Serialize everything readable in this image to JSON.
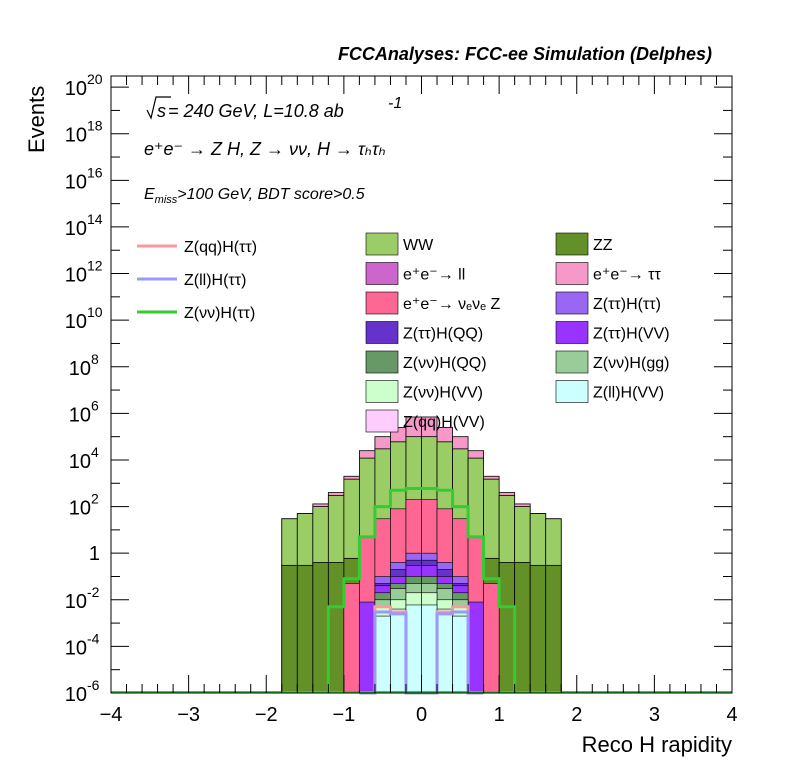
{
  "header": "FCCAnalyses: FCC-ee Simulation (Delphes)",
  "annotations": {
    "line1_sqrt": "s",
    "line1_rest": " = 240 GeV, L=10.8 ab",
    "line1_exp": "-1",
    "line2": "e⁺e⁻ → Z H, Z → νν, H → τₕτₕ",
    "line3_E": "E",
    "line3_sub": "miss",
    "line3_rest": ">100 GeV, BDT score>0.5"
  },
  "chart_data": {
    "type": "stacked histogram",
    "xlabel": "Reco H rapidity",
    "ylabel": "Events",
    "xlim": [
      -4,
      4
    ],
    "ylim": [
      1e-06,
      3e+20
    ],
    "log_y": true,
    "x_ticks": [
      "−4",
      "−3",
      "−2",
      "−1",
      "0",
      "1",
      "2",
      "3",
      "4"
    ],
    "y_ticks": [
      {
        "base": "10",
        "exp": "20"
      },
      {
        "base": "10",
        "exp": "18"
      },
      {
        "base": "10",
        "exp": "16"
      },
      {
        "base": "10",
        "exp": "14"
      },
      {
        "base": "10",
        "exp": "12"
      },
      {
        "base": "10",
        "exp": "10"
      },
      {
        "base": "10",
        "exp": "8"
      },
      {
        "base": "10",
        "exp": "6"
      },
      {
        "base": "10",
        "exp": "4"
      },
      {
        "base": "10",
        "exp": "2"
      },
      {
        "base": "1",
        "exp": ""
      },
      {
        "base": "10",
        "exp": "-2"
      },
      {
        "base": "10",
        "exp": "-4"
      },
      {
        "base": "10",
        "exp": "-6"
      }
    ],
    "bin_edges": [
      -2.0,
      -1.8,
      -1.6,
      -1.4,
      -1.2,
      -1.0,
      -0.8,
      -0.6,
      -0.4,
      -0.2,
      0.0,
      0.2,
      0.4,
      0.6,
      0.8,
      1.0,
      1.2,
      1.4,
      1.6,
      1.8,
      2.0
    ],
    "stack_totals": {
      "ZZ": [
        1e-06,
        0.3,
        0.3,
        0.4,
        0.4,
        0.6,
        1.3,
        1.8,
        2.4,
        3.0,
        3.0,
        2.4,
        1.8,
        1.3,
        0.6,
        0.4,
        0.4,
        0.3,
        0.3,
        1e-06
      ],
      "WW": [
        1e-06,
        30,
        50,
        100,
        300,
        1500,
        12000,
        30000,
        60000,
        100000,
        100000,
        60000,
        30000,
        12000,
        1500,
        300,
        100,
        50,
        30,
        1e-06
      ],
      "ee_tautau": [
        1e-06,
        30,
        50,
        130,
        400,
        2000,
        25000,
        100000,
        250000,
        700000,
        700000,
        250000,
        100000,
        25000,
        2000,
        400,
        130,
        50,
        30,
        1e-06
      ]
    },
    "series": [
      {
        "name": "ZZ",
        "color": "#639128",
        "values": [
          1e-06,
          0.3,
          0.3,
          0.4,
          0.4,
          0.6,
          1.3,
          1.8,
          2.4,
          3.0,
          3.0,
          2.4,
          1.8,
          1.3,
          0.6,
          0.4,
          0.4,
          0.3,
          0.3,
          1e-06
        ]
      },
      {
        "name": "WW",
        "color": "#9acd66",
        "values": [
          1e-06,
          30,
          50,
          100,
          300,
          1500,
          12000,
          30000,
          60000,
          100000,
          100000,
          60000,
          30000,
          12000,
          1500,
          300,
          100,
          50,
          30,
          1e-06
        ]
      },
      {
        "name": "e⁺e⁻→ ττ",
        "color": "#f699c9",
        "values": [
          1e-06,
          30,
          50,
          130,
          400,
          2000,
          25000,
          100000,
          250000,
          700000,
          700000,
          250000,
          100000,
          25000,
          2000,
          400,
          130,
          50,
          30,
          1e-06
        ]
      },
      {
        "name": "e⁺e⁻→ νₑνₑ Z",
        "color": "#fe6693",
        "values": [
          1e-06,
          1e-06,
          1e-06,
          1e-06,
          1e-06,
          0.05,
          5,
          30,
          80,
          200,
          200,
          80,
          30,
          5,
          0.05,
          1e-06,
          1e-06,
          1e-06,
          1e-06,
          1e-06
        ]
      },
      {
        "name": "Z(ττ)H(ττ)",
        "color": "#9a66f4",
        "values": [
          1e-06,
          1e-06,
          1e-06,
          1e-06,
          1e-06,
          1e-06,
          1e-06,
          0.1,
          0.4,
          1.0,
          1.0,
          0.4,
          0.1,
          1e-06,
          1e-06,
          1e-06,
          1e-06,
          1e-06,
          1e-06,
          1e-06
        ]
      },
      {
        "name": "Z(ττ)H(QQ)",
        "color": "#6533cc",
        "values": [
          1e-06,
          1e-06,
          1e-06,
          1e-06,
          1e-06,
          1e-06,
          1e-06,
          0.05,
          0.2,
          0.5,
          0.5,
          0.2,
          0.05,
          1e-06,
          1e-06,
          1e-06,
          1e-06,
          1e-06,
          1e-06,
          1e-06
        ]
      },
      {
        "name": "Z(ττ)H(VV)",
        "color": "#9933ff",
        "values": [
          1e-06,
          1e-06,
          1e-06,
          1e-06,
          1e-06,
          1e-06,
          0.008,
          0.04,
          0.1,
          0.3,
          0.3,
          0.1,
          0.04,
          0.008,
          1e-06,
          1e-06,
          1e-06,
          1e-06,
          1e-06,
          1e-06
        ]
      },
      {
        "name": "Z(νν)H(QQ)",
        "color": "#669966",
        "values": [
          1e-06,
          1e-06,
          1e-06,
          1e-06,
          1e-06,
          1e-06,
          1e-06,
          0.02,
          0.05,
          0.1,
          0.1,
          0.05,
          0.02,
          1e-06,
          1e-06,
          1e-06,
          1e-06,
          1e-06,
          1e-06,
          1e-06
        ]
      },
      {
        "name": "Z(νν)H(gg)",
        "color": "#99cc99",
        "values": [
          1e-06,
          1e-06,
          1e-06,
          1e-06,
          1e-06,
          1e-06,
          1e-06,
          0.01,
          0.03,
          0.05,
          0.05,
          0.03,
          0.01,
          1e-06,
          1e-06,
          1e-06,
          1e-06,
          1e-06,
          1e-06,
          1e-06
        ]
      },
      {
        "name": "Z(νν)H(VV)",
        "color": "#ccffcc",
        "values": [
          1e-06,
          1e-06,
          1e-06,
          1e-06,
          1e-06,
          1e-06,
          1e-06,
          0.005,
          0.01,
          0.02,
          0.02,
          0.01,
          0.005,
          1e-06,
          1e-06,
          1e-06,
          1e-06,
          1e-06,
          1e-06,
          1e-06
        ]
      },
      {
        "name": "Z(ll)H(VV)",
        "color": "#ccffff",
        "values": [
          1e-06,
          1e-06,
          1e-06,
          1e-06,
          1e-06,
          1e-06,
          1e-06,
          0.002,
          0.004,
          0.006,
          0.006,
          0.004,
          0.002,
          1e-06,
          1e-06,
          1e-06,
          1e-06,
          1e-06,
          1e-06,
          1e-06
        ]
      },
      {
        "name": "Z(qq)H(VV)",
        "color": "#ffccff",
        "values": [
          1e-06,
          1e-06,
          1e-06,
          1e-06,
          1e-06,
          1e-06,
          1e-06,
          1e-06,
          1e-06,
          1e-06,
          1e-06,
          1e-06,
          1e-06,
          1e-06,
          1e-06,
          1e-06,
          1e-06,
          1e-06,
          1e-06,
          1e-06
        ]
      },
      {
        "name": "e⁺e⁻→ ll",
        "color": "#cc66cc",
        "values": [
          1e-06,
          1e-06,
          1e-06,
          1e-06,
          1e-06,
          1e-06,
          1e-06,
          1e-06,
          1e-06,
          1e-06,
          1e-06,
          1e-06,
          1e-06,
          1e-06,
          1e-06,
          1e-06,
          1e-06,
          1e-06,
          1e-06,
          1e-06
        ]
      }
    ],
    "signal_lines": [
      {
        "name": "Z(qq)H(ττ)",
        "color": "#ff9999",
        "edges": [
          -0.6,
          -0.4,
          -0.2,
          0.0,
          0.2,
          0.4,
          0.6
        ],
        "values": [
          0.005,
          0.003,
          1e-06,
          1e-06,
          0.003,
          0.005
        ]
      },
      {
        "name": "Z(ll)H(ττ)",
        "color": "#9999ff",
        "edges": [
          -0.8,
          -0.6,
          -0.4,
          -0.2,
          0.0,
          0.2,
          0.4,
          0.6,
          0.8
        ],
        "values": [
          1e-06,
          0.003,
          0.0025,
          1e-06,
          1e-06,
          0.0025,
          0.003,
          1e-06
        ]
      },
      {
        "name": "Z(νν)H(ττ)",
        "color": "#33cc33",
        "edges": [
          -1.2,
          -1.0,
          -0.8,
          -0.6,
          -0.4,
          -0.2,
          0.0,
          0.2,
          0.4,
          0.6,
          0.8,
          1.0,
          1.2
        ],
        "values": [
          0.005,
          0.08,
          5,
          100,
          500,
          600,
          600,
          500,
          100,
          5,
          0.08,
          0.005
        ]
      }
    ],
    "legend": {
      "lines": [
        "Z(qq)H(ττ)",
        "Z(ll)H(ττ)",
        "Z(νν)H(ττ)"
      ],
      "col1": [
        "WW",
        "e⁺e⁻→ ll",
        "e⁺e⁻→ νₑνₑ Z",
        "Z(ττ)H(QQ)",
        "Z(νν)H(QQ)",
        "Z(νν)H(VV)",
        "Z(qq)H(VV)"
      ],
      "col2": [
        "ZZ",
        "e⁺e⁻→ ττ",
        "Z(ττ)H(ττ)",
        "Z(ττ)H(VV)",
        "Z(νν)H(gg)",
        "Z(ll)H(VV)"
      ]
    }
  }
}
